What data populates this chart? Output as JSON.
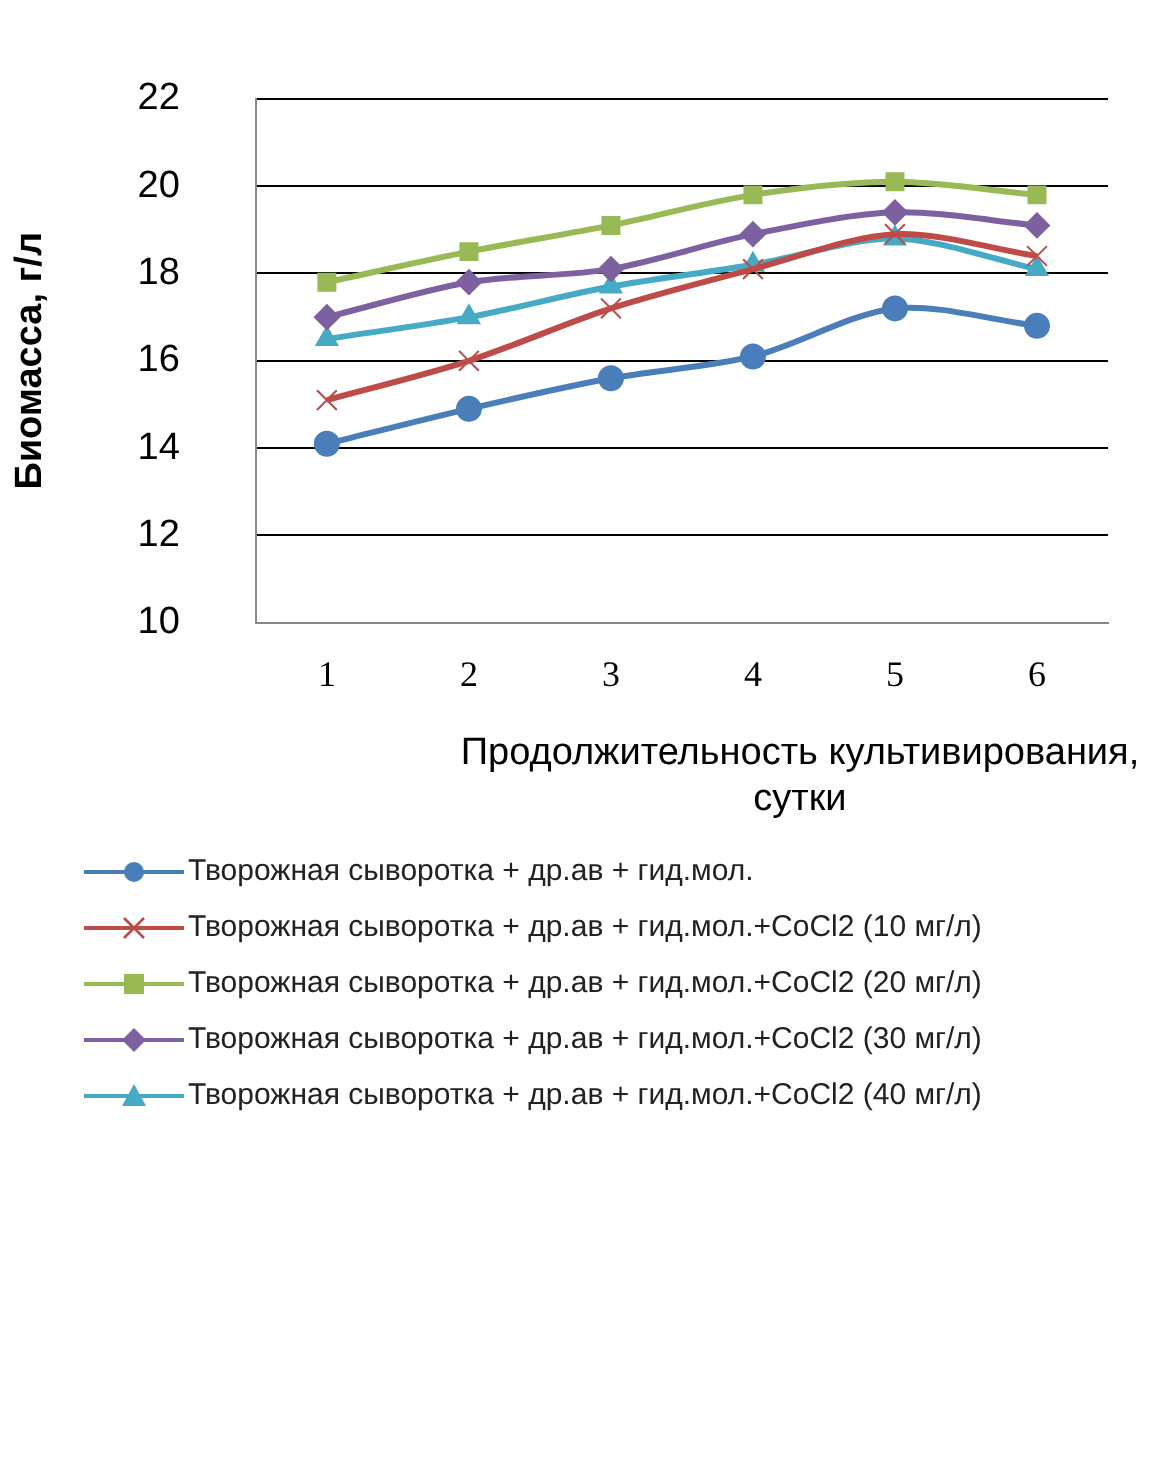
{
  "chart_data": {
    "type": "line",
    "ylabel": "Биомасса, г/л",
    "xlabel": "Продолжительность культивирования, сутки",
    "categories": [
      "1",
      "2",
      "3",
      "4",
      "5",
      "6"
    ],
    "ylim": [
      10,
      22
    ],
    "yticks": [
      10,
      12,
      14,
      16,
      18,
      20,
      22
    ],
    "grid": "y",
    "legend": "bottom",
    "line_style": "solid",
    "series": [
      {
        "name": "Творожная сыворотка + др.ав + гид.мол.",
        "color": "#4a7ebb",
        "marker": "circle",
        "values": [
          14.1,
          14.9,
          15.6,
          16.1,
          17.2,
          16.8
        ]
      },
      {
        "name": "Творожная сыворотка + др.ав + гид.мол.+CoCl2 (10 мг/л)",
        "color": "#be4b48",
        "marker": "cross",
        "values": [
          15.1,
          16.0,
          17.2,
          18.1,
          18.9,
          18.4
        ]
      },
      {
        "name": "Творожная сыворотка + др.ав + гид.мол.+CoCl2 (20 мг/л)",
        "color": "#98b954",
        "marker": "square",
        "values": [
          17.8,
          18.5,
          19.1,
          19.8,
          20.1,
          19.8
        ]
      },
      {
        "name": "Творожная сыворотка + др.ав + гид.мол.+CoCl2 (30 мг/л)",
        "color": "#7d60a0",
        "marker": "diamond",
        "values": [
          17.0,
          17.8,
          18.1,
          18.9,
          19.4,
          19.1
        ]
      },
      {
        "name": "Творожная сыворотка + др.ав + гид.мол.+CoCl2 (40 мг/л)",
        "color": "#46aac5",
        "marker": "triangle",
        "values": [
          16.5,
          17.0,
          17.7,
          18.2,
          18.8,
          18.1
        ]
      }
    ]
  }
}
